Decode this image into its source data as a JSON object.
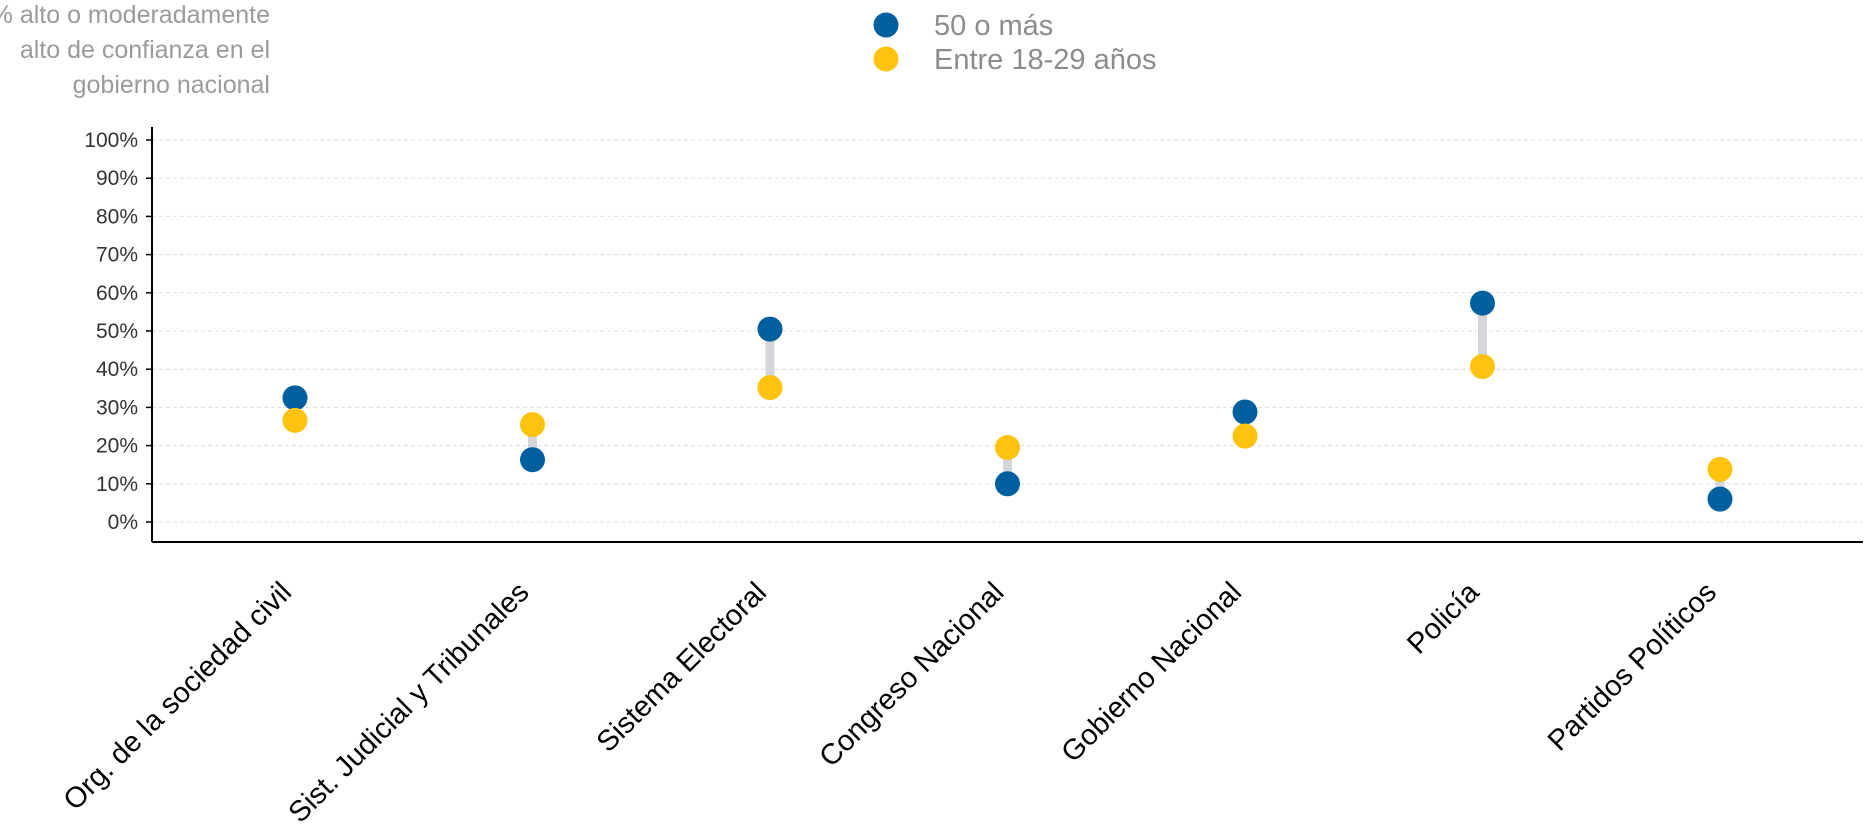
{
  "chart_data": {
    "type": "scatter",
    "style": "dumbbell",
    "ylabel": [
      "% alto o moderadamente",
      "alto de confianza en el",
      "gobierno nacional"
    ],
    "xlabel": "",
    "ylim": [
      0,
      100
    ],
    "y_ticks": [
      "0%",
      "10%",
      "20%",
      "30%",
      "40%",
      "50%",
      "60%",
      "70%",
      "80%",
      "90%",
      "100%"
    ],
    "y_tick_values": [
      0,
      10,
      20,
      30,
      40,
      50,
      60,
      70,
      80,
      90,
      100
    ],
    "grid": "horizontal dashed",
    "legend_position": "top-center",
    "categories": [
      "Org. de la sociedad civil",
      "Sist. Judicial y Tribunales",
      "Sistema Electoral",
      "Congreso Nacional",
      "Gobierno Nacional",
      "Policía",
      "Partidos Políticos"
    ],
    "series": [
      {
        "name": "50 o más",
        "color": "#005f9e",
        "values": [
          32.5,
          16.3,
          50.5,
          10.0,
          28.8,
          57.3,
          6.0
        ]
      },
      {
        "name": "Entre 18-29 años",
        "color": "#ffc20e",
        "values": [
          26.6,
          25.5,
          35.2,
          19.5,
          22.5,
          40.7,
          13.8
        ]
      }
    ],
    "connector_color": "#d4d6db"
  }
}
